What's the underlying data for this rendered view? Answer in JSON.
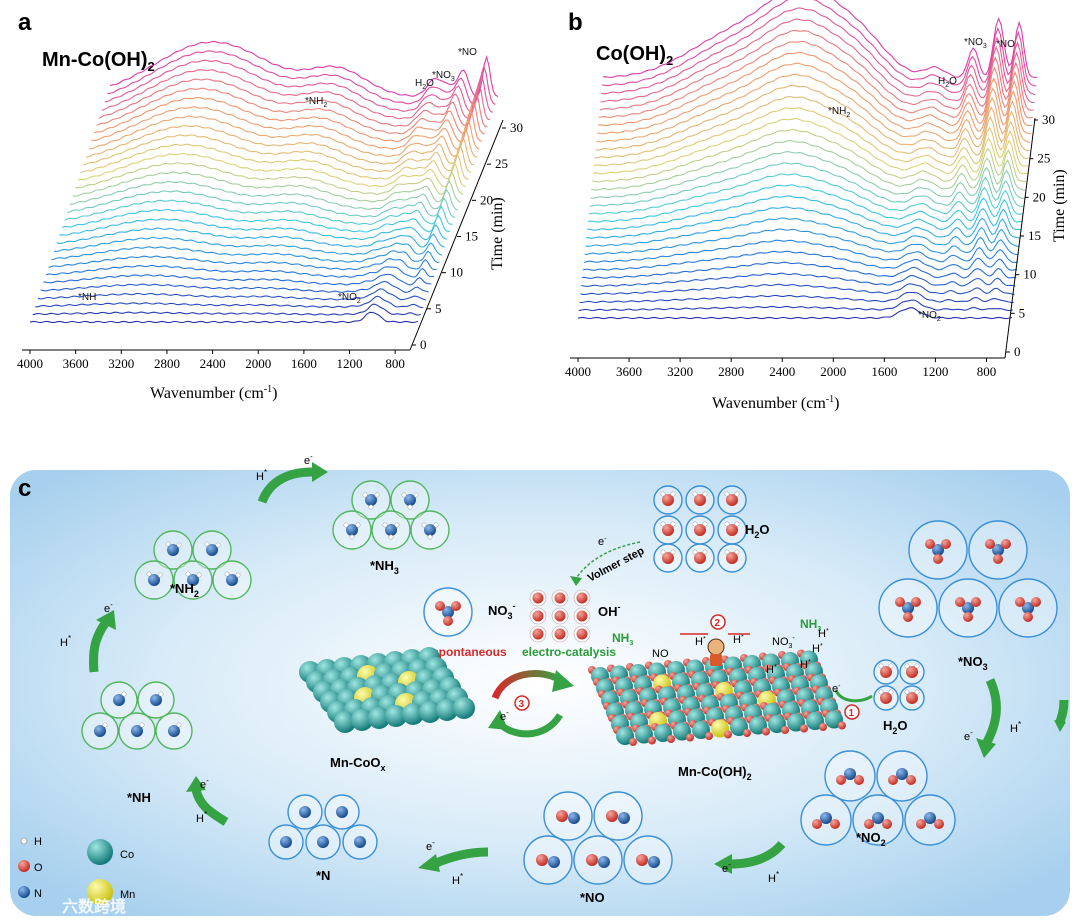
{
  "panel_a": {
    "label": "a",
    "title": "Mn-Co(OH)",
    "title_sub": "2",
    "peaks": {
      "nh2": "*NH",
      "nh2_sub": "2",
      "h2o": "H",
      "h2o_sub": "2",
      "h2o_end": "O",
      "no3": "*NO",
      "no3_sub": "3",
      "no": "*NO",
      "nh": "*NH",
      "no2": "*NO",
      "no2_sub": "2"
    }
  },
  "panel_b": {
    "label": "b",
    "title": "Co(OH)",
    "title_sub": "2",
    "peaks": {
      "nh2": "*NH",
      "nh2_sub": "2",
      "h2o": "H",
      "h2o_sub": "2",
      "h2o_end": "O",
      "no3": "*NO",
      "no3_sub": "3",
      "no": "*NO",
      "no2": "*NO",
      "no2_sub": "2"
    }
  },
  "chart_data": [
    {
      "type": "line",
      "title": "Mn-Co(OH)2",
      "xlabel": "Wavenumber (cm⁻¹)",
      "zlabel": "Time (min)",
      "x_ticks": [
        "4000",
        "3600",
        "3200",
        "2800",
        "2400",
        "2000",
        "1600",
        "1200",
        "800"
      ],
      "time_ticks": [
        "0",
        "5",
        "10",
        "15",
        "20",
        "25",
        "30"
      ],
      "xlim": [
        4000,
        600
      ],
      "time_range": [
        0,
        30
      ],
      "series_count": 31,
      "annotations": [
        "*NH",
        "*NH2",
        "H2O",
        "*NO3",
        "*NO",
        "*NO2"
      ]
    },
    {
      "type": "line",
      "title": "Co(OH)2",
      "xlabel": "Wavenumber (cm⁻¹)",
      "zlabel": "Time (min)",
      "x_ticks": [
        "4000",
        "3600",
        "3200",
        "2800",
        "2400",
        "2000",
        "1600",
        "1200",
        "800"
      ],
      "time_ticks": [
        "0",
        "5",
        "10",
        "15",
        "20",
        "25",
        "30"
      ],
      "xlim": [
        4000,
        600
      ],
      "time_range": [
        0,
        30
      ],
      "series_count": 31,
      "annotations": [
        "*NH2",
        "H2O",
        "*NO3",
        "*NO",
        "*NO2"
      ]
    }
  ],
  "panel_c": {
    "label": "c",
    "nodes": {
      "nh3": "*NH",
      "nh3_sub": "3",
      "nh2": "*NH",
      "nh2_sub": "2",
      "nh": "*NH",
      "n": "*N",
      "no": "*NO",
      "no2": "*NO",
      "no2_sub": "2",
      "no3": "*NO",
      "no3_sub": "3",
      "h2o_top": "H",
      "h2o_top_sub": "2",
      "h2o_top_end": "O",
      "h2o_right": "H",
      "h2o_right_sub": "2",
      "h2o_right_end": "O"
    },
    "steps": {
      "e": "e",
      "e_sup": "-",
      "h": "H",
      "h_sup": "*"
    },
    "center": {
      "nitrate": "NO",
      "nitrate_sub": "3",
      "nitrate_sup": "-",
      "hydroxide": "OH",
      "hydroxide_sup": "-",
      "spontaneous": "spontaneous",
      "electro": "electro-catalysis",
      "volmer": "Volmer step",
      "mn_coox": "Mn-CoO",
      "mn_coox_sub": "x",
      "mn_coh": "Mn-Co(OH)",
      "mn_coh_sub": "2",
      "nh3": "NH",
      "nh3_sub": "3",
      "no": "NO",
      "no3s": "NO",
      "no3s_sub": "3",
      "no3s_sup": "-",
      "hsurf": "H",
      "hsurf_sup": "*",
      "step1": "1",
      "step2": "2",
      "step3": "3"
    },
    "legend": {
      "h": "H",
      "o": "O",
      "n": "N",
      "co": "Co",
      "mn": "Mn"
    },
    "watermark": "六数跨境",
    "colors": {
      "co": "#1f9c9a",
      "mn": "#e7e21c",
      "o": "#d9453a",
      "n": "#1f5ea8",
      "green": "#3aa646",
      "bg": "#cfe6f5"
    }
  }
}
